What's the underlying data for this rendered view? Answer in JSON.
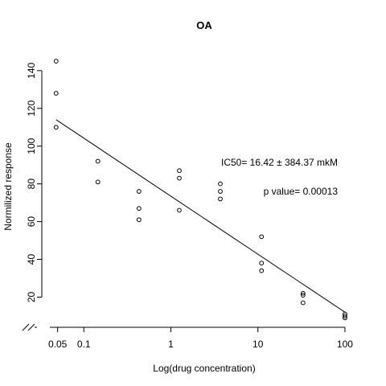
{
  "chart_data": {
    "type": "scatter",
    "title": "OA",
    "xlabel": "Log(drug concentration)",
    "ylabel": "Normilized response",
    "x_scale": "log",
    "x_ticks": [
      {
        "value": 0.05,
        "label": "0.05"
      },
      {
        "value": 0.1,
        "label": "0.1"
      },
      {
        "value": 1,
        "label": "1"
      },
      {
        "value": 10,
        "label": "10"
      },
      {
        "value": 100,
        "label": "100"
      }
    ],
    "y_ticks": [
      20,
      40,
      60,
      80,
      100,
      120,
      140
    ],
    "xlim": [
      0.039,
      150
    ],
    "ylim": [
      4,
      151
    ],
    "axis_break": true,
    "grid": false,
    "points": [
      {
        "x": 0.048,
        "y": 145
      },
      {
        "x": 0.048,
        "y": 128
      },
      {
        "x": 0.048,
        "y": 110
      },
      {
        "x": 0.145,
        "y": 92
      },
      {
        "x": 0.145,
        "y": 81
      },
      {
        "x": 0.43,
        "y": 76
      },
      {
        "x": 0.43,
        "y": 67
      },
      {
        "x": 0.43,
        "y": 61
      },
      {
        "x": 1.25,
        "y": 87
      },
      {
        "x": 1.25,
        "y": 83
      },
      {
        "x": 1.25,
        "y": 66
      },
      {
        "x": 3.7,
        "y": 80
      },
      {
        "x": 3.7,
        "y": 76
      },
      {
        "x": 3.7,
        "y": 72
      },
      {
        "x": 11,
        "y": 52
      },
      {
        "x": 11,
        "y": 38
      },
      {
        "x": 11,
        "y": 34
      },
      {
        "x": 33,
        "y": 22
      },
      {
        "x": 33,
        "y": 21
      },
      {
        "x": 33,
        "y": 17
      },
      {
        "x": 100,
        "y": 11
      },
      {
        "x": 100,
        "y": 10
      },
      {
        "x": 100,
        "y": 9
      }
    ],
    "fit_line": [
      {
        "x": 0.048,
        "y": 114
      },
      {
        "x": 100,
        "y": 12
      }
    ],
    "annotations": [
      {
        "text": "IC50= 16.42 ± 384.37 mkM",
        "x": 30,
        "y": 89
      },
      {
        "text": "p value= 0.00013",
        "x": 30,
        "y": 74
      }
    ]
  }
}
